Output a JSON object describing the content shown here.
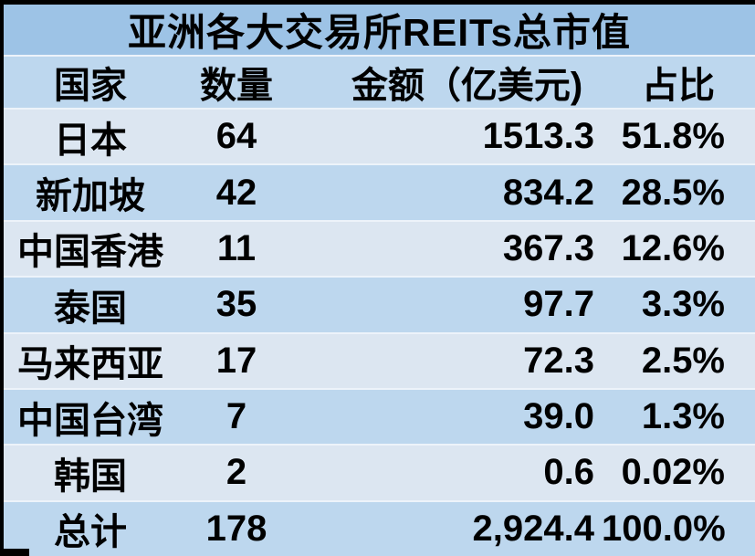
{
  "chart_data": {
    "type": "table",
    "title": "亚洲各大交易所REITs总市值",
    "columns": [
      "国家",
      "数量",
      "金额（亿美元)",
      "占比"
    ],
    "rows": [
      [
        "日本",
        "64",
        "1513.3",
        "51.8%"
      ],
      [
        "新加坡",
        "42",
        "834.2",
        "28.5%"
      ],
      [
        "中国香港",
        "11",
        "367.3",
        "12.6%"
      ],
      [
        "泰国",
        "35",
        "97.7",
        "3.3%"
      ],
      [
        "马来西亚",
        "17",
        "72.3",
        "2.5%"
      ],
      [
        "中国台湾",
        "7",
        "39.0",
        "1.3%"
      ],
      [
        "韩国",
        "2",
        "0.6",
        "0.02%"
      ],
      [
        "总计",
        "178",
        "2,924.4",
        "100.0%"
      ]
    ],
    "layout": {
      "row_shading": "alternating, first data row light",
      "total_row_label": "总计"
    },
    "colors": {
      "title_bg": "#9dc3e6",
      "header_bg": "#bdd7ee",
      "row_light": "#dce6f1",
      "row_dark": "#bdd7ee",
      "gridline": "#edf3fa",
      "border": "#000000",
      "text": "#000000"
    }
  }
}
